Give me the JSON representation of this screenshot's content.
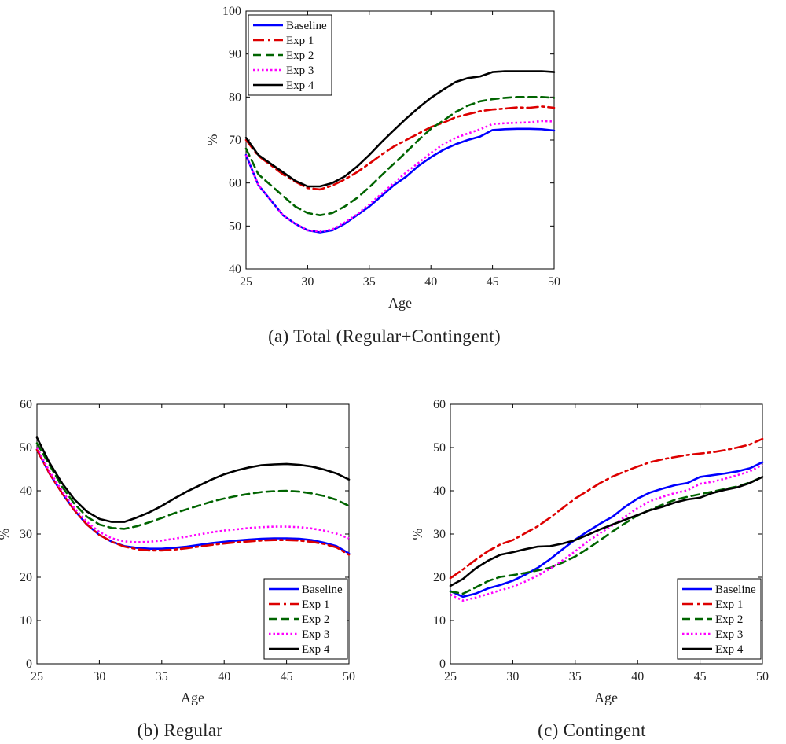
{
  "series_styles": [
    {
      "name": "Baseline",
      "color": "#0000ff",
      "dash": ""
    },
    {
      "name": "Exp 1",
      "color": "#dd0000",
      "dash": "14 5 3 5"
    },
    {
      "name": "Exp 2",
      "color": "#006400",
      "dash": "10 6"
    },
    {
      "name": "Exp 3",
      "color": "#ff00ff",
      "dash": "2.5 3"
    },
    {
      "name": "Exp 4",
      "color": "#000000",
      "dash": ""
    }
  ],
  "chart_data": [
    {
      "type": "line",
      "caption": "(a) Total (Regular+Contingent)",
      "xlabel": "Age",
      "ylabel": "%",
      "xlim": [
        25,
        50
      ],
      "ylim": [
        40,
        100
      ],
      "xticks": [
        25,
        30,
        35,
        40,
        45,
        50
      ],
      "yticks": [
        40,
        50,
        60,
        70,
        80,
        90,
        100
      ],
      "legend_position": "top-left",
      "grid": false,
      "x": [
        25,
        26,
        27,
        28,
        29,
        30,
        31,
        32,
        33,
        34,
        35,
        36,
        37,
        38,
        39,
        40,
        41,
        42,
        43,
        44,
        45,
        46,
        47,
        48,
        49,
        50
      ],
      "series": [
        {
          "name": "Baseline",
          "values": [
            66.5,
            59.5,
            56,
            52.5,
            50.5,
            49,
            48.5,
            49,
            50.5,
            52.5,
            54.5,
            57,
            59.5,
            61.5,
            64,
            66,
            67.7,
            69,
            70,
            70.8,
            72.3,
            72.5,
            72.6,
            72.6,
            72.5,
            72.2
          ]
        },
        {
          "name": "Exp 1",
          "values": [
            70,
            66.3,
            64.2,
            62,
            60.3,
            58.8,
            58.5,
            59.4,
            60.8,
            62.5,
            64.5,
            66.6,
            68.5,
            70,
            71.5,
            73,
            74,
            75.3,
            76,
            76.7,
            77.1,
            77.3,
            77.6,
            77.5,
            77.8,
            77.5
          ]
        },
        {
          "name": "Exp 2",
          "values": [
            68,
            62,
            59.5,
            57,
            54.5,
            53,
            52.5,
            53,
            54.5,
            56.5,
            59,
            61.8,
            64.5,
            67.2,
            70,
            72.6,
            74.5,
            76.5,
            78,
            79,
            79.5,
            79.8,
            80,
            80,
            80,
            79.8
          ]
        },
        {
          "name": "Exp 3",
          "values": [
            66.5,
            59.5,
            56,
            52.5,
            50.5,
            49,
            48.7,
            49.2,
            50.8,
            52.7,
            55,
            57.5,
            60,
            62.5,
            64.7,
            67,
            69,
            70.5,
            71.5,
            72.5,
            73.7,
            73.9,
            74,
            74.1,
            74.4,
            74.3
          ]
        },
        {
          "name": "Exp 4",
          "values": [
            70.5,
            66.5,
            64.5,
            62.5,
            60.5,
            59.2,
            59.2,
            60,
            61.5,
            63.8,
            66.5,
            69.5,
            72.3,
            75,
            77.5,
            79.8,
            81.7,
            83.5,
            84.4,
            84.8,
            85.8,
            86,
            86,
            86,
            86,
            85.8
          ]
        }
      ]
    },
    {
      "type": "line",
      "caption": "(b) Regular",
      "xlabel": "Age",
      "ylabel": "%",
      "xlim": [
        25,
        50
      ],
      "ylim": [
        0,
        60
      ],
      "xticks": [
        25,
        30,
        35,
        40,
        45,
        50
      ],
      "yticks": [
        0,
        10,
        20,
        30,
        40,
        50,
        60
      ],
      "legend_position": "bottom-right",
      "grid": false,
      "x": [
        25,
        26,
        27,
        28,
        29,
        30,
        31,
        32,
        33,
        34,
        35,
        36,
        37,
        38,
        39,
        40,
        41,
        42,
        43,
        44,
        45,
        46,
        47,
        48,
        49,
        50
      ],
      "series": [
        {
          "name": "Baseline",
          "values": [
            49.5,
            44,
            39.5,
            35.5,
            32.2,
            29.8,
            28.2,
            27.2,
            26.8,
            26.6,
            26.6,
            26.8,
            27.1,
            27.5,
            27.9,
            28.2,
            28.5,
            28.7,
            28.9,
            29,
            29,
            28.9,
            28.6,
            28,
            27.2,
            25.5
          ]
        },
        {
          "name": "Exp 1",
          "values": [
            49.5,
            44,
            39.5,
            35.5,
            32.2,
            29.8,
            28.2,
            27.1,
            26.5,
            26.2,
            26.2,
            26.4,
            26.7,
            27.1,
            27.5,
            27.8,
            28.1,
            28.3,
            28.5,
            28.6,
            28.6,
            28.5,
            28.2,
            27.7,
            26.9,
            25.2
          ]
        },
        {
          "name": "Exp 2",
          "values": [
            51,
            46,
            41,
            37,
            34,
            32.2,
            31.4,
            31.2,
            31.8,
            32.7,
            33.7,
            34.8,
            35.7,
            36.6,
            37.5,
            38.2,
            38.8,
            39.3,
            39.7,
            39.9,
            40,
            39.8,
            39.4,
            38.8,
            37.9,
            36.5
          ]
        },
        {
          "name": "Exp 3",
          "values": [
            50,
            44.5,
            40,
            36,
            32.8,
            30.5,
            29,
            28.3,
            28.1,
            28.2,
            28.5,
            28.9,
            29.4,
            29.9,
            30.4,
            30.8,
            31.1,
            31.4,
            31.6,
            31.7,
            31.7,
            31.6,
            31.3,
            30.8,
            30.1,
            29
          ]
        },
        {
          "name": "Exp 4",
          "values": [
            52.3,
            46.5,
            41.8,
            38,
            35.2,
            33.5,
            32.8,
            32.8,
            33.8,
            35,
            36.5,
            38.2,
            39.8,
            41.2,
            42.6,
            43.8,
            44.7,
            45.4,
            45.9,
            46.1,
            46.2,
            46,
            45.6,
            44.9,
            44,
            42.6
          ]
        }
      ]
    },
    {
      "type": "line",
      "caption": "(c) Contingent",
      "xlabel": "Age",
      "ylabel": "%",
      "xlim": [
        25,
        50
      ],
      "ylim": [
        0,
        60
      ],
      "xticks": [
        25,
        30,
        35,
        40,
        45,
        50
      ],
      "yticks": [
        0,
        10,
        20,
        30,
        40,
        50,
        60
      ],
      "legend_position": "bottom-right",
      "grid": false,
      "x": [
        25,
        26,
        27,
        28,
        29,
        30,
        31,
        32,
        33,
        34,
        35,
        36,
        37,
        38,
        39,
        40,
        41,
        42,
        43,
        44,
        45,
        46,
        47,
        48,
        49,
        50
      ],
      "series": [
        {
          "name": "Baseline",
          "values": [
            16.8,
            15.5,
            16.2,
            17.4,
            18.2,
            19.2,
            20.6,
            22.2,
            24.2,
            26.5,
            28.7,
            30.6,
            32.4,
            34,
            36.3,
            38.2,
            39.6,
            40.5,
            41.3,
            41.8,
            43.2,
            43.6,
            44,
            44.5,
            45.2,
            46.6
          ]
        },
        {
          "name": "Exp 1",
          "values": [
            19.8,
            21.8,
            24,
            26,
            27.6,
            28.6,
            30.2,
            31.8,
            33.8,
            36,
            38.2,
            40,
            41.8,
            43.3,
            44.5,
            45.6,
            46.6,
            47.3,
            47.8,
            48.3,
            48.6,
            48.9,
            49.4,
            50,
            50.7,
            52
          ]
        },
        {
          "name": "Exp 2",
          "values": [
            16.7,
            16.2,
            17.6,
            19.1,
            20.1,
            20.5,
            21,
            21.6,
            22.2,
            23.4,
            24.8,
            26.6,
            28.6,
            30.6,
            32.5,
            34.3,
            35.6,
            36.8,
            37.9,
            38.6,
            39.2,
            39.8,
            40.4,
            41,
            41.9,
            43.2
          ]
        },
        {
          "name": "Exp 3",
          "values": [
            16,
            14.6,
            15.3,
            16.1,
            17,
            17.8,
            19,
            20.4,
            22,
            23.9,
            26,
            28.3,
            30.2,
            32,
            34,
            36,
            37.6,
            38.6,
            39.5,
            40.1,
            41.6,
            42.1,
            42.8,
            43.6,
            44.5,
            46
          ]
        },
        {
          "name": "Exp 4",
          "values": [
            18,
            19.6,
            22,
            23.8,
            25.2,
            25.8,
            26.5,
            27.1,
            27.2,
            27.8,
            28.6,
            29.8,
            31.1,
            32.2,
            33.3,
            34.4,
            35.5,
            36.3,
            37.3,
            38,
            38.4,
            39.5,
            40.2,
            40.8,
            41.8,
            43.2
          ]
        }
      ]
    }
  ]
}
